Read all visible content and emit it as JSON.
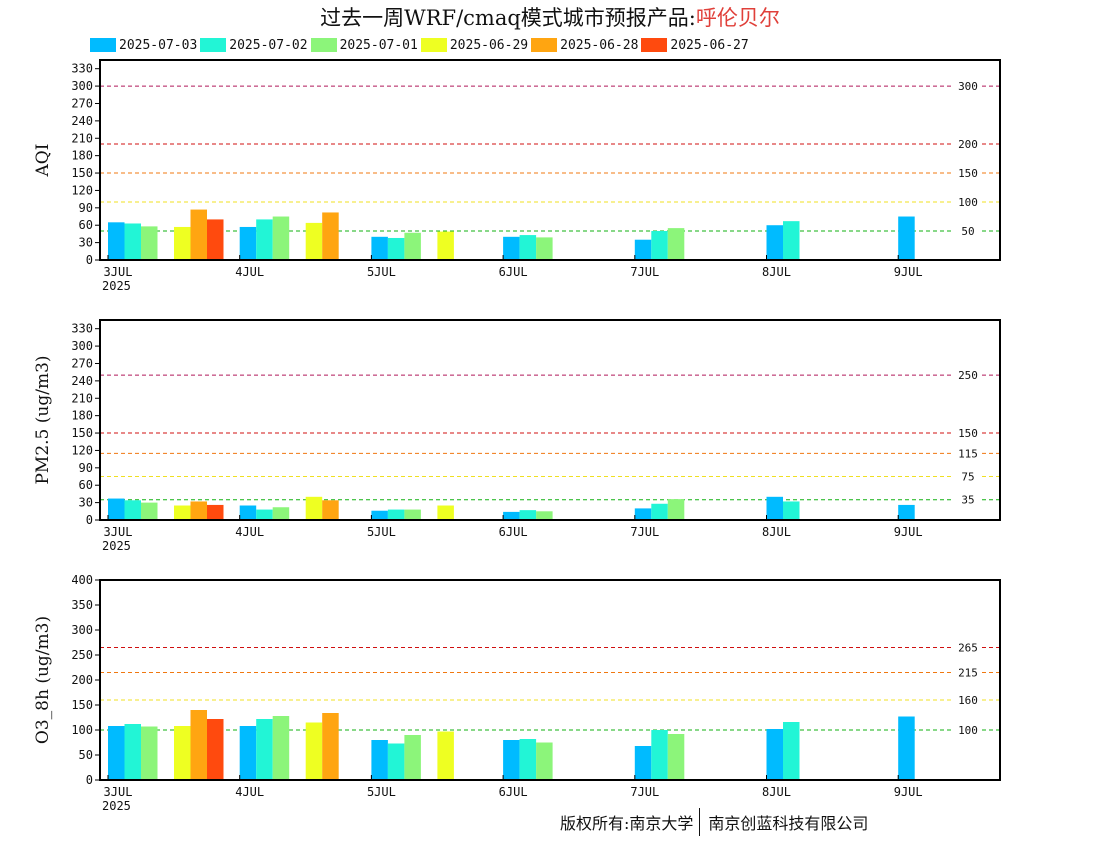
{
  "title_prefix": "过去一周WRF/cmaq模式城市预报产品:",
  "city": "呼伦贝尔",
  "footer": {
    "left": "版权所有:南京大学",
    "right": "南京创蓝科技有限公司"
  },
  "series_colors": [
    "#00bbff",
    "#22f5d6",
    "#8cf57a",
    "#eeff22",
    "#ffa511",
    "#ff4a0e"
  ],
  "chart_data": [
    {
      "type": "bar",
      "ylabel": "AQI",
      "ylim": [
        0,
        345
      ],
      "yticks": [
        0,
        30,
        60,
        90,
        120,
        150,
        180,
        210,
        240,
        270,
        300,
        330
      ],
      "date_labels": [
        "3JUL",
        "4JUL",
        "5JUL",
        "6JUL",
        "7JUL",
        "8JUL",
        "9JUL"
      ],
      "year_label": "2025",
      "reference_lines": [
        {
          "value": 300,
          "label": "300",
          "color": "#b0185a"
        },
        {
          "value": 200,
          "label": "200",
          "color": "#d01010"
        },
        {
          "value": 150,
          "label": "150",
          "color": "#f07810"
        },
        {
          "value": 100,
          "label": "100",
          "color": "#f0e020"
        },
        {
          "value": 50,
          "label": "50",
          "color": "#10b010"
        }
      ],
      "series": [
        {
          "name": "2025-07-03",
          "values": [
            65,
            57,
            40,
            40,
            35,
            60,
            75
          ]
        },
        {
          "name": "2025-07-02",
          "values": [
            63,
            70,
            38,
            43,
            50,
            67,
            null
          ]
        },
        {
          "name": "2025-07-01",
          "values": [
            58,
            75,
            47,
            39,
            55,
            null,
            null
          ]
        },
        {
          "name": "2025-06-29",
          "values": [
            57,
            64,
            49,
            null,
            null,
            null,
            null
          ]
        },
        {
          "name": "2025-06-28",
          "values": [
            87,
            82,
            null,
            null,
            null,
            null,
            null
          ]
        },
        {
          "name": "2025-06-27",
          "values": [
            70,
            null,
            null,
            null,
            null,
            null,
            null
          ]
        }
      ]
    },
    {
      "type": "bar",
      "ylabel": "PM2.5 (ug/m3)",
      "ylim": [
        0,
        345
      ],
      "yticks": [
        0,
        30,
        60,
        90,
        120,
        150,
        180,
        210,
        240,
        270,
        300,
        330
      ],
      "date_labels": [
        "3JUL",
        "4JUL",
        "5JUL",
        "6JUL",
        "7JUL",
        "8JUL",
        "9JUL"
      ],
      "year_label": "2025",
      "reference_lines": [
        {
          "value": 250,
          "label": "250",
          "color": "#b0185a"
        },
        {
          "value": 150,
          "label": "150",
          "color": "#d01010"
        },
        {
          "value": 115,
          "label": "115",
          "color": "#f07810"
        },
        {
          "value": 75,
          "label": "75",
          "color": "#f0e020"
        },
        {
          "value": 35,
          "label": "35",
          "color": "#10b010"
        }
      ],
      "series": [
        {
          "name": "2025-07-03",
          "values": [
            37,
            25,
            16,
            14,
            20,
            40,
            26
          ]
        },
        {
          "name": "2025-07-02",
          "values": [
            34,
            18,
            18,
            17,
            28,
            32,
            null
          ]
        },
        {
          "name": "2025-07-01",
          "values": [
            30,
            22,
            18,
            15,
            36,
            null,
            null
          ]
        },
        {
          "name": "2025-06-29",
          "values": [
            25,
            40,
            25,
            null,
            null,
            null,
            null
          ]
        },
        {
          "name": "2025-06-28",
          "values": [
            32,
            34,
            null,
            null,
            null,
            null,
            null
          ]
        },
        {
          "name": "2025-06-27",
          "values": [
            26,
            null,
            null,
            null,
            null,
            null,
            null
          ]
        }
      ]
    },
    {
      "type": "bar",
      "ylabel": "O3_8h (ug/m3)",
      "ylim": [
        0,
        400
      ],
      "yticks": [
        0,
        50,
        100,
        150,
        200,
        250,
        300,
        350,
        400
      ],
      "date_labels": [
        "3JUL",
        "4JUL",
        "5JUL",
        "6JUL",
        "7JUL",
        "8JUL",
        "9JUL"
      ],
      "year_label": "2025",
      "reference_lines": [
        {
          "value": 265,
          "label": "265",
          "color": "#d01010"
        },
        {
          "value": 215,
          "label": "215",
          "color": "#f07810"
        },
        {
          "value": 160,
          "label": "160",
          "color": "#f0e020"
        },
        {
          "value": 100,
          "label": "100",
          "color": "#10b010"
        }
      ],
      "series": [
        {
          "name": "2025-07-03",
          "values": [
            108,
            108,
            80,
            80,
            68,
            102,
            127
          ]
        },
        {
          "name": "2025-07-02",
          "values": [
            112,
            122,
            73,
            82,
            100,
            116,
            null
          ]
        },
        {
          "name": "2025-07-01",
          "values": [
            107,
            128,
            90,
            75,
            92,
            null,
            null
          ]
        },
        {
          "name": "2025-06-29",
          "values": [
            108,
            115,
            97,
            null,
            null,
            null,
            null
          ]
        },
        {
          "name": "2025-06-28",
          "values": [
            140,
            134,
            null,
            null,
            null,
            null,
            null
          ]
        },
        {
          "name": "2025-06-27",
          "values": [
            122,
            null,
            null,
            null,
            null,
            null,
            null
          ]
        }
      ]
    }
  ]
}
